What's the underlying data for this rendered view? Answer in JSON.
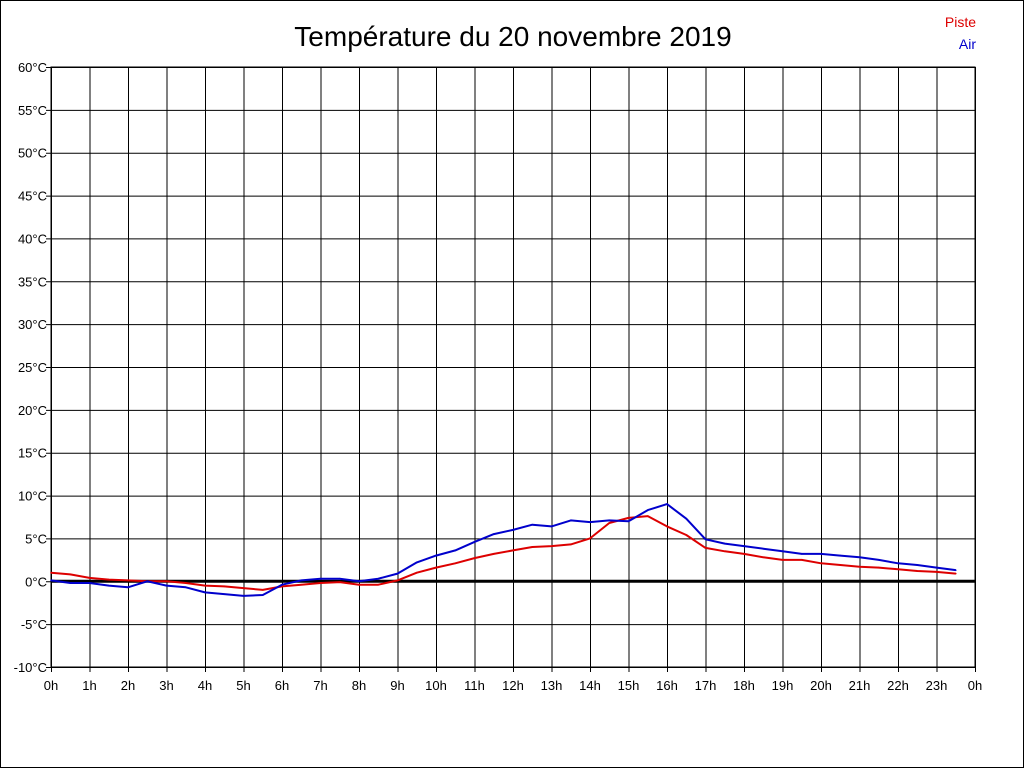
{
  "chart_data": {
    "type": "line",
    "title": "Température du 20 novembre 2019",
    "xlabel": "",
    "ylabel": "",
    "x_tick_labels": [
      "0h",
      "1h",
      "2h",
      "3h",
      "4h",
      "5h",
      "6h",
      "7h",
      "8h",
      "9h",
      "10h",
      "11h",
      "12h",
      "13h",
      "14h",
      "15h",
      "16h",
      "17h",
      "18h",
      "19h",
      "20h",
      "21h",
      "22h",
      "23h",
      "0h"
    ],
    "y_tick_labels": [
      "-10°C",
      "-5°C",
      "0°C",
      "5°C",
      "10°C",
      "15°C",
      "20°C",
      "25°C",
      "30°C",
      "35°C",
      "40°C",
      "45°C",
      "50°C",
      "55°C",
      "60°C"
    ],
    "xlim": [
      0,
      24
    ],
    "ylim": [
      -10,
      60
    ],
    "grid": true,
    "legend_position": "top-right",
    "zero_line": 0,
    "series": [
      {
        "name": "Piste",
        "color": "#dd0000",
        "x": [
          0,
          0.5,
          1,
          1.5,
          2,
          2.5,
          3,
          3.5,
          4,
          4.5,
          5,
          5.5,
          6,
          6.5,
          7,
          7.5,
          8,
          8.5,
          9,
          9.5,
          10,
          10.5,
          11,
          11.5,
          12,
          12.5,
          13,
          13.5,
          14,
          14.5,
          15,
          15.5,
          16,
          16.5,
          17,
          17.5,
          18,
          18.5,
          19,
          19.5,
          20,
          20.5,
          21,
          21.5,
          22,
          22.5,
          23,
          23.5
        ],
        "y": [
          1.0,
          0.8,
          0.4,
          0.2,
          0.1,
          0.0,
          0.0,
          -0.2,
          -0.5,
          -0.6,
          -0.8,
          -1.0,
          -0.6,
          -0.4,
          -0.2,
          -0.1,
          -0.4,
          -0.4,
          0.1,
          1.0,
          1.6,
          2.1,
          2.7,
          3.2,
          3.6,
          4.0,
          4.1,
          4.3,
          5.0,
          6.8,
          7.4,
          7.6,
          6.4,
          5.4,
          3.9,
          3.5,
          3.2,
          2.8,
          2.5,
          2.5,
          2.1,
          1.9,
          1.7,
          1.6,
          1.4,
          1.2,
          1.1,
          0.9
        ]
      },
      {
        "name": "Air",
        "color": "#0000cc",
        "x": [
          0,
          0.5,
          1,
          1.5,
          2,
          2.5,
          3,
          3.5,
          4,
          4.5,
          5,
          5.5,
          6,
          6.5,
          7,
          7.5,
          8,
          8.5,
          9,
          9.5,
          10,
          10.5,
          11,
          11.5,
          12,
          12.5,
          13,
          13.5,
          14,
          14.5,
          15,
          15.5,
          16,
          16.5,
          17,
          17.5,
          18,
          18.5,
          19,
          19.5,
          20,
          20.5,
          21,
          21.5,
          22,
          22.5,
          23,
          23.5
        ],
        "y": [
          0.1,
          -0.2,
          -0.2,
          -0.5,
          -0.7,
          0.0,
          -0.5,
          -0.7,
          -1.3,
          -1.5,
          -1.7,
          -1.6,
          -0.4,
          0.1,
          0.3,
          0.3,
          0.0,
          0.3,
          0.9,
          2.2,
          3.0,
          3.6,
          4.6,
          5.5,
          6.0,
          6.6,
          6.4,
          7.1,
          6.9,
          7.1,
          7.0,
          8.3,
          9.0,
          7.3,
          4.9,
          4.4,
          4.1,
          3.8,
          3.5,
          3.2,
          3.2,
          3.0,
          2.8,
          2.5,
          2.1,
          1.9,
          1.6,
          1.3
        ]
      }
    ]
  }
}
